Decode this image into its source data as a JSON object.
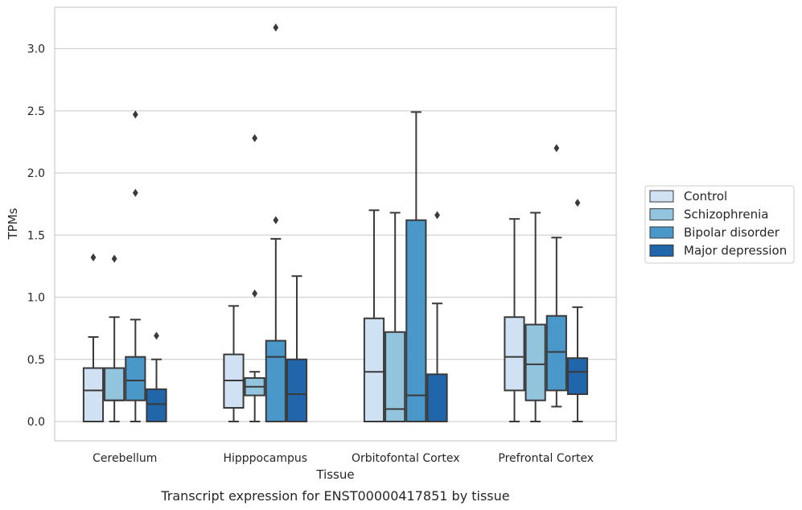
{
  "chart_data": {
    "type": "box",
    "title": "",
    "caption": "Transcript expression for ENST00000417851 by tissue",
    "xlabel": "Tissue",
    "ylabel": "TPMs",
    "ylim": [
      -0.15,
      3.32
    ],
    "yticks": [
      0.0,
      0.5,
      1.0,
      1.5,
      2.0,
      2.5,
      3.0
    ],
    "ytick_labels": [
      "0.0",
      "0.5",
      "1.0",
      "1.5",
      "2.0",
      "2.5",
      "3.0"
    ],
    "grid": "horizontal",
    "legend_position": "right",
    "categories": [
      "Cerebellum",
      "Hipppocampus",
      "Orbitofontal Cortex",
      "Prefrontal Cortex"
    ],
    "series": [
      {
        "name": "Control",
        "color": "#cfe1f2",
        "boxes": [
          {
            "q1": 0.0,
            "median": 0.25,
            "q3": 0.43,
            "whisker_low": 0.0,
            "whisker_high": 0.68,
            "outliers": [
              1.32
            ]
          },
          {
            "q1": 0.11,
            "median": 0.33,
            "q3": 0.54,
            "whisker_low": 0.0,
            "whisker_high": 0.93,
            "outliers": []
          },
          {
            "q1": 0.0,
            "median": 0.4,
            "q3": 0.83,
            "whisker_low": 0.0,
            "whisker_high": 1.7,
            "outliers": []
          },
          {
            "q1": 0.25,
            "median": 0.52,
            "q3": 0.84,
            "whisker_low": 0.0,
            "whisker_high": 1.63,
            "outliers": []
          }
        ]
      },
      {
        "name": "Schizophrenia",
        "color": "#93c4de",
        "boxes": [
          {
            "q1": 0.17,
            "median": 0.17,
            "q3": 0.43,
            "whisker_low": 0.0,
            "whisker_high": 0.84,
            "outliers": [
              1.31
            ]
          },
          {
            "q1": 0.21,
            "median": 0.28,
            "q3": 0.35,
            "whisker_low": 0.0,
            "whisker_high": 0.4,
            "outliers": [
              1.03,
              2.28
            ]
          },
          {
            "q1": 0.0,
            "median": 0.1,
            "q3": 0.72,
            "whisker_low": 0.0,
            "whisker_high": 1.68,
            "outliers": []
          },
          {
            "q1": 0.17,
            "median": 0.46,
            "q3": 0.78,
            "whisker_low": 0.0,
            "whisker_high": 1.68,
            "outliers": []
          }
        ]
      },
      {
        "name": "Bipolar disorder",
        "color": "#4a98c9",
        "boxes": [
          {
            "q1": 0.17,
            "median": 0.33,
            "q3": 0.52,
            "whisker_low": 0.0,
            "whisker_high": 0.82,
            "outliers": [
              1.84,
              2.47
            ]
          },
          {
            "q1": 0.0,
            "median": 0.52,
            "q3": 0.65,
            "whisker_low": 0.0,
            "whisker_high": 1.47,
            "outliers": [
              1.62,
              3.17
            ]
          },
          {
            "q1": 0.0,
            "median": 0.21,
            "q3": 1.62,
            "whisker_low": 0.0,
            "whisker_high": 2.49,
            "outliers": []
          },
          {
            "q1": 0.25,
            "median": 0.56,
            "q3": 0.85,
            "whisker_low": 0.12,
            "whisker_high": 1.48,
            "outliers": [
              2.2
            ]
          }
        ]
      },
      {
        "name": "Major depression",
        "color": "#2165ab",
        "boxes": [
          {
            "q1": 0.0,
            "median": 0.14,
            "q3": 0.26,
            "whisker_low": 0.0,
            "whisker_high": 0.5,
            "outliers": [
              0.69
            ]
          },
          {
            "q1": 0.0,
            "median": 0.22,
            "q3": 0.5,
            "whisker_low": 0.0,
            "whisker_high": 1.17,
            "outliers": []
          },
          {
            "q1": 0.0,
            "median": 0.0,
            "q3": 0.38,
            "whisker_low": 0.0,
            "whisker_high": 0.95,
            "outliers": [
              1.66
            ]
          },
          {
            "q1": 0.22,
            "median": 0.4,
            "q3": 0.51,
            "whisker_low": 0.0,
            "whisker_high": 0.92,
            "outliers": [
              1.76
            ]
          }
        ]
      }
    ]
  }
}
